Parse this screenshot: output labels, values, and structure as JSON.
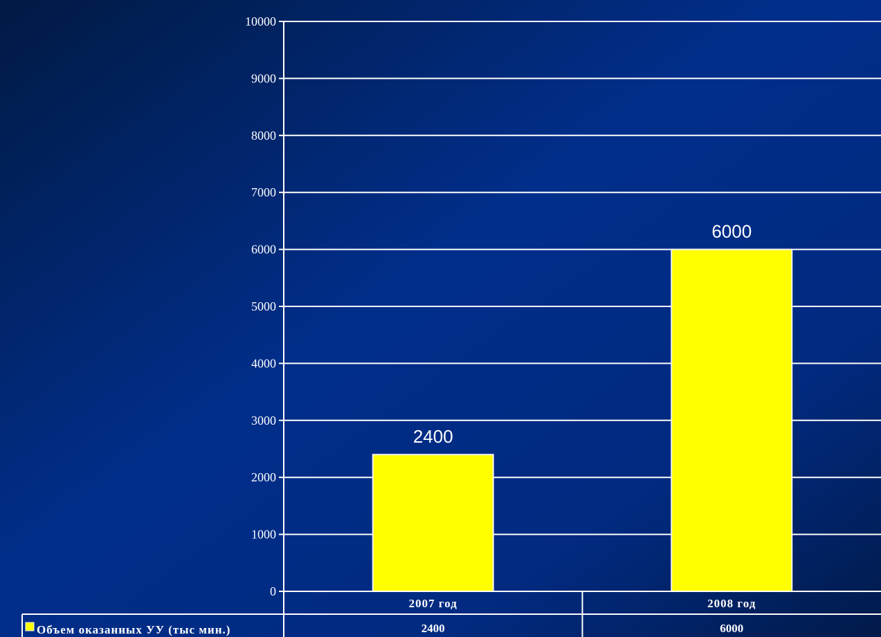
{
  "chart_data": {
    "type": "bar",
    "categories": [
      "2007 год",
      "2008 год"
    ],
    "series": [
      {
        "name": "Объем оказанных УУ (тыс мин.)",
        "values": [
          2400,
          6000
        ]
      }
    ],
    "data_labels": [
      "2400",
      "6000"
    ],
    "y_ticks": [
      "0",
      "1000",
      "2000",
      "3000",
      "4000",
      "5000",
      "6000",
      "7000",
      "8000",
      "9000",
      "10000"
    ],
    "ylim": [
      0,
      10000
    ],
    "grid": true,
    "data_table": {
      "legend_label": "Объем оказанных УУ (тыс мин.)",
      "values": [
        "2400",
        "6000"
      ]
    },
    "colors": {
      "bar": "#ffff00",
      "bar_border": "#f3f3f3",
      "gridline": "#ffffff",
      "text": "#ffffff",
      "background_dark": "#011a44",
      "background_mid": "#012e8a"
    }
  }
}
